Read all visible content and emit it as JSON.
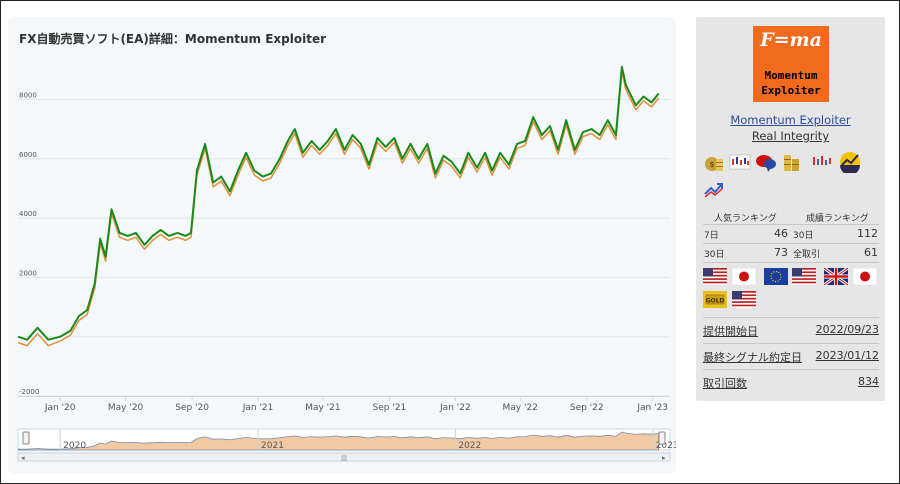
{
  "chart": {
    "title": "FX自動売買ソフト(EA)詳細：Momentum Exploiter"
  },
  "chart_data": {
    "type": "line",
    "title": "FX自動売買ソフト(EA)詳細：Momentum Exploiter",
    "xlabel": "",
    "ylabel": "",
    "ylim": [
      -2000,
      9600
    ],
    "yticks": [
      -2000,
      0,
      2000,
      4000,
      6000,
      8000
    ],
    "ytick_labels": [
      "-2000",
      "",
      "2000",
      "4000",
      "6000",
      "8000"
    ],
    "xlim": [
      "2019-10-15",
      "2023-02-02"
    ],
    "xticks": [
      "2020-01-01",
      "2020-05-01",
      "2020-09-01",
      "2021-01-01",
      "2021-05-01",
      "2021-09-01",
      "2022-01-01",
      "2022-05-01",
      "2022-09-01",
      "2023-01-01"
    ],
    "xtick_labels": [
      "Jan '20",
      "May '20",
      "Sep '20",
      "Jan '21",
      "May '21",
      "Sep '21",
      "Jan '22",
      "May '22",
      "Sep '22",
      "Jan '23"
    ],
    "navigator_labels": [
      "2020",
      "2021",
      "2022",
      "2023"
    ],
    "grid": true,
    "series": [
      {
        "color": "#1a8a1a",
        "x": [
          "2019-10-15",
          "2019-11-01",
          "2019-11-20",
          "2019-12-10",
          "2020-01-01",
          "2020-01-20",
          "2020-02-05",
          "2020-02-20",
          "2020-03-05",
          "2020-03-15",
          "2020-03-25",
          "2020-04-05",
          "2020-04-20",
          "2020-05-05",
          "2020-05-20",
          "2020-06-05",
          "2020-06-20",
          "2020-07-05",
          "2020-07-20",
          "2020-08-05",
          "2020-08-20",
          "2020-08-30",
          "2020-09-10",
          "2020-09-25",
          "2020-10-10",
          "2020-10-25",
          "2020-11-10",
          "2020-11-25",
          "2020-12-10",
          "2020-12-25",
          "2021-01-10",
          "2021-01-25",
          "2021-02-10",
          "2021-02-25",
          "2021-03-10",
          "2021-03-25",
          "2021-04-10",
          "2021-04-25",
          "2021-05-10",
          "2021-05-25",
          "2021-06-10",
          "2021-06-25",
          "2021-07-10",
          "2021-07-25",
          "2021-08-10",
          "2021-08-25",
          "2021-09-10",
          "2021-09-25",
          "2021-10-10",
          "2021-10-25",
          "2021-11-10",
          "2021-11-25",
          "2021-12-10",
          "2021-12-25",
          "2022-01-10",
          "2022-01-25",
          "2022-02-10",
          "2022-02-25",
          "2022-03-10",
          "2022-03-25",
          "2022-04-10",
          "2022-04-25",
          "2022-05-10",
          "2022-05-25",
          "2022-06-10",
          "2022-06-25",
          "2022-07-10",
          "2022-07-25",
          "2022-08-10",
          "2022-08-25",
          "2022-09-10",
          "2022-09-25",
          "2022-10-10",
          "2022-10-25",
          "2022-11-05",
          "2022-11-12",
          "2022-11-20",
          "2022-12-01",
          "2022-12-15",
          "2022-12-30",
          "2023-01-12"
        ],
        "values": [
          0,
          -100,
          300,
          -100,
          0,
          200,
          700,
          900,
          1800,
          3300,
          2700,
          4300,
          3500,
          3400,
          3500,
          3100,
          3400,
          3600,
          3400,
          3500,
          3400,
          3500,
          5600,
          6500,
          5200,
          5400,
          4900,
          5600,
          6200,
          5600,
          5400,
          5500,
          6000,
          6600,
          7000,
          6200,
          6600,
          6300,
          6600,
          7000,
          6300,
          6800,
          6500,
          5800,
          6700,
          6400,
          6700,
          6000,
          6500,
          6000,
          6500,
          5500,
          6100,
          5900,
          5500,
          6200,
          5700,
          6200,
          5600,
          6200,
          5800,
          6500,
          6600,
          7400,
          6800,
          7100,
          6300,
          7300,
          6300,
          6900,
          7000,
          6800,
          7300,
          6800,
          9100,
          8500,
          8200,
          7800,
          8100,
          7900,
          8200
        ]
      },
      {
        "color": "#e0903a",
        "x": [
          "2019-10-15",
          "2019-11-01",
          "2019-11-20",
          "2019-12-10",
          "2020-01-01",
          "2020-01-20",
          "2020-02-05",
          "2020-02-20",
          "2020-03-05",
          "2020-03-15",
          "2020-03-25",
          "2020-04-05",
          "2020-04-20",
          "2020-05-05",
          "2020-05-20",
          "2020-06-05",
          "2020-06-20",
          "2020-07-05",
          "2020-07-20",
          "2020-08-05",
          "2020-08-20",
          "2020-08-30",
          "2020-09-10",
          "2020-09-25",
          "2020-10-10",
          "2020-10-25",
          "2020-11-10",
          "2020-11-25",
          "2020-12-10",
          "2020-12-25",
          "2021-01-10",
          "2021-01-25",
          "2021-02-10",
          "2021-02-25",
          "2021-03-10",
          "2021-03-25",
          "2021-04-10",
          "2021-04-25",
          "2021-05-10",
          "2021-05-25",
          "2021-06-10",
          "2021-06-25",
          "2021-07-10",
          "2021-07-25",
          "2021-08-10",
          "2021-08-25",
          "2021-09-10",
          "2021-09-25",
          "2021-10-10",
          "2021-10-25",
          "2021-11-10",
          "2021-11-25",
          "2021-12-10",
          "2021-12-25",
          "2022-01-10",
          "2022-01-25",
          "2022-02-10",
          "2022-02-25",
          "2022-03-10",
          "2022-03-25",
          "2022-04-10",
          "2022-04-25",
          "2022-05-10",
          "2022-05-25",
          "2022-06-10",
          "2022-06-25",
          "2022-07-10",
          "2022-07-25",
          "2022-08-10",
          "2022-08-25",
          "2022-09-10",
          "2022-09-25",
          "2022-10-10",
          "2022-10-25",
          "2022-11-05",
          "2022-11-12",
          "2022-11-20",
          "2022-12-01",
          "2022-12-15",
          "2022-12-30",
          "2023-01-12"
        ],
        "values": [
          -200,
          -300,
          100,
          -300,
          -150,
          50,
          550,
          750,
          1650,
          3150,
          2550,
          4150,
          3350,
          3250,
          3350,
          2950,
          3250,
          3450,
          3250,
          3350,
          3250,
          3350,
          5450,
          6350,
          5050,
          5250,
          4750,
          5450,
          6050,
          5450,
          5250,
          5350,
          5850,
          6450,
          6850,
          6050,
          6450,
          6150,
          6450,
          6850,
          6150,
          6650,
          6350,
          5650,
          6550,
          6250,
          6550,
          5850,
          6350,
          5850,
          6350,
          5350,
          5950,
          5750,
          5350,
          6050,
          5550,
          6050,
          5450,
          6050,
          5650,
          6350,
          6450,
          7250,
          6650,
          6950,
          6150,
          7150,
          6150,
          6750,
          6850,
          6650,
          7150,
          6650,
          8950,
          8350,
          8050,
          7650,
          7950,
          7750,
          8050
        ]
      }
    ]
  },
  "sidebar": {
    "logo": {
      "line_top": "F=ma",
      "line1": "Momentum",
      "line2": "Exploiter"
    },
    "system_name": "Momentum Exploiter",
    "developer": "Real Integrity",
    "badges": [
      "money-bag-icon",
      "candlestick-chart-icon",
      "speech-bubbles-icon",
      "coin-stacks-icon",
      "candlestick-chart-icon",
      "trend-up-badge-icon",
      "trend-arrow-icon"
    ],
    "ranking": {
      "popular_label": "人気ランキング",
      "performance_label": "成績ランキング",
      "rows": [
        {
          "l1": "7日",
          "v1": "46",
          "l2": "30日",
          "v2": "112"
        },
        {
          "l1": "30日",
          "v1": "73",
          "l2": "全取引",
          "v2": "61"
        }
      ]
    },
    "currency_pairs": [
      [
        "us",
        "jp"
      ],
      [
        "eu",
        "us"
      ],
      [
        "gb",
        "jp"
      ],
      [
        "gold",
        "us"
      ]
    ],
    "info": [
      {
        "label": "提供開始日",
        "value": "2022/09/23"
      },
      {
        "label": "最終シグナル約定日",
        "value": "2023/01/12"
      },
      {
        "label": "取引回数",
        "value": "834"
      }
    ]
  }
}
